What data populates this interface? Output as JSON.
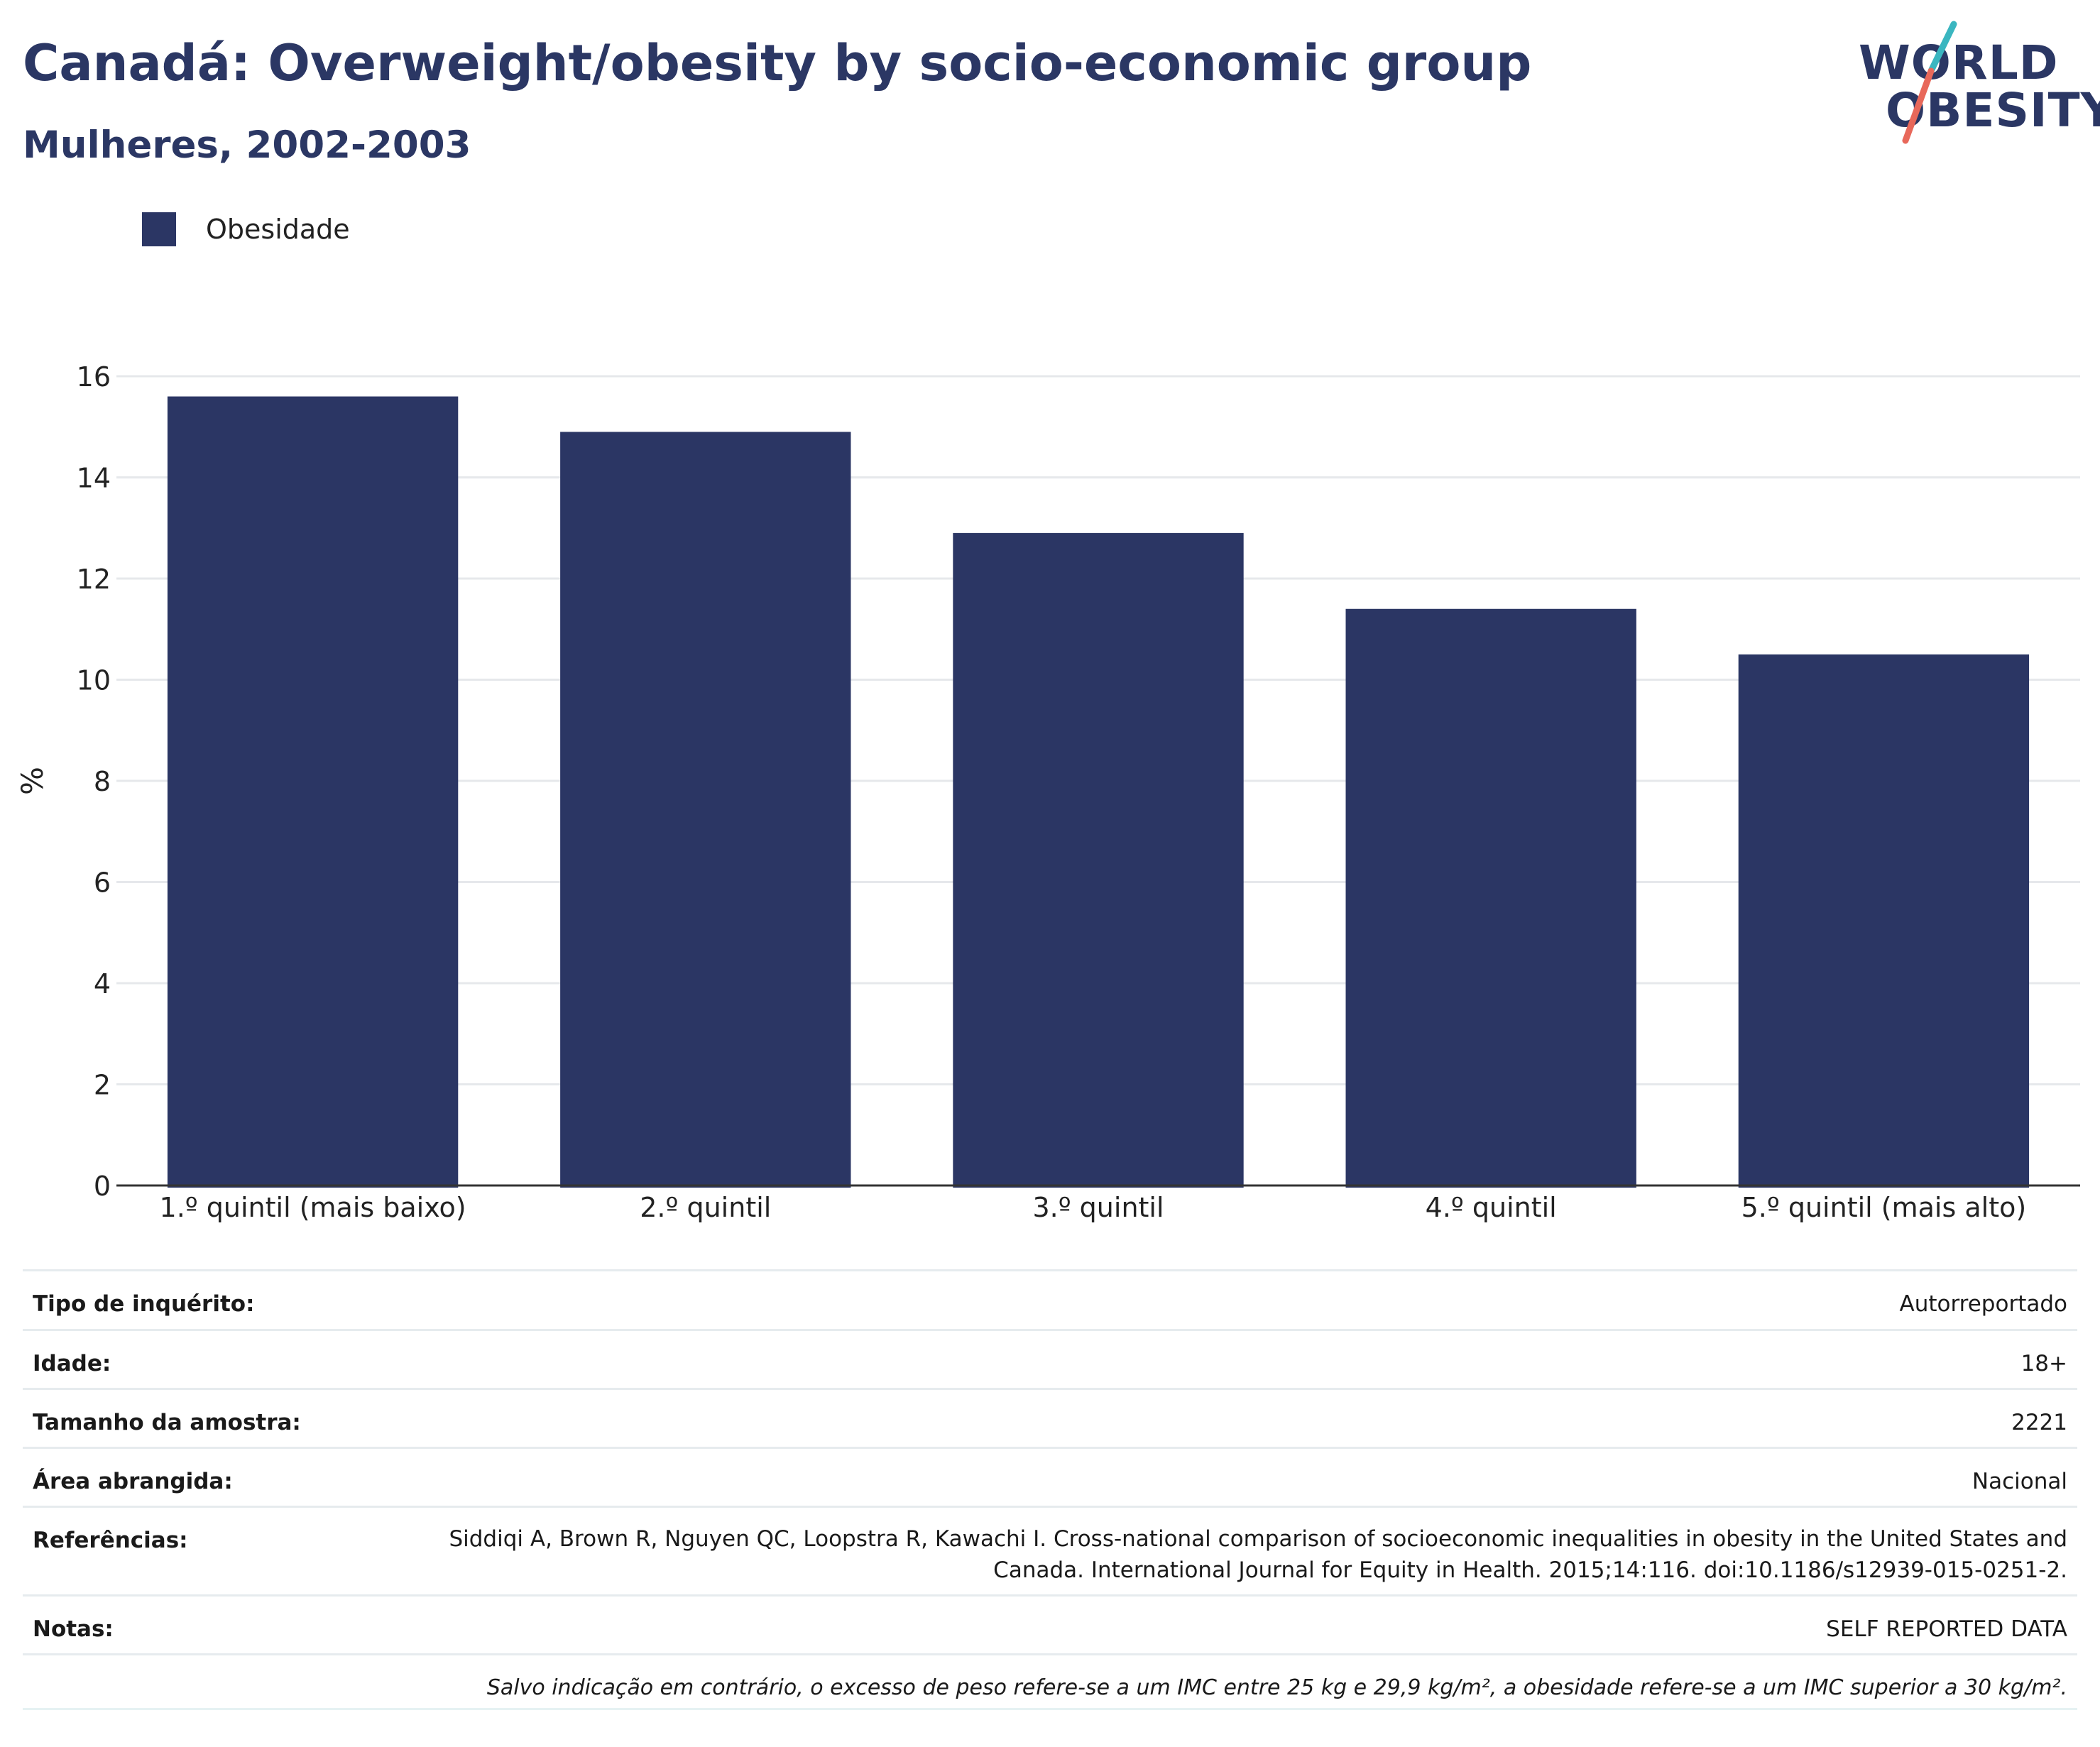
{
  "header": {
    "title": "Canadá: Overweight/obesity by socio-economic group",
    "subtitle": "Mulheres, 2002-2003"
  },
  "logo": {
    "line1": "WORLD",
    "line2": "OBESITY"
  },
  "colors": {
    "bar": "#2b3664",
    "title": "#2b3764",
    "logo_slash_top": "#3ab6c0",
    "logo_slash_bottom": "#e8685a"
  },
  "chart_data": {
    "type": "bar",
    "categories": [
      "1.º quintil (mais baixo)",
      "2.º quintil",
      "3.º quintil",
      "4.º quintil",
      "5.º quintil (mais alto)"
    ],
    "series": [
      {
        "name": "Obesidade",
        "values": [
          15.6,
          14.9,
          12.9,
          11.4,
          10.5
        ]
      }
    ],
    "ylabel": "%",
    "ylim": [
      0,
      16
    ],
    "yticks": [
      0,
      2,
      4,
      6,
      8,
      10,
      12,
      14,
      16
    ],
    "grid": true,
    "legend": "top-left"
  },
  "info": {
    "rows": [
      {
        "label": "Tipo de inquérito:",
        "value": "Autorreportado"
      },
      {
        "label": "Idade:",
        "value": "18+"
      },
      {
        "label": "Tamanho da amostra:",
        "value": "2221"
      },
      {
        "label": "Área abrangida:",
        "value": "Nacional"
      },
      {
        "label": "Referências:",
        "value": "Siddiqi A, Brown R, Nguyen QC, Loopstra R, Kawachi I. Cross-national comparison of socioeconomic inequalities in obesity in the United States and Canada. International Journal for Equity in Health. 2015;14:116. doi:10.1186/s12939-015-0251-2."
      },
      {
        "label": "Notas:",
        "value": "SELF REPORTED DATA"
      }
    ],
    "footnote": "Salvo indicação em contrário, o excesso de peso refere-se a um IMC entre 25 kg e 29,9 kg/m², a obesidade refere-se a um IMC superior a 30 kg/m²."
  }
}
